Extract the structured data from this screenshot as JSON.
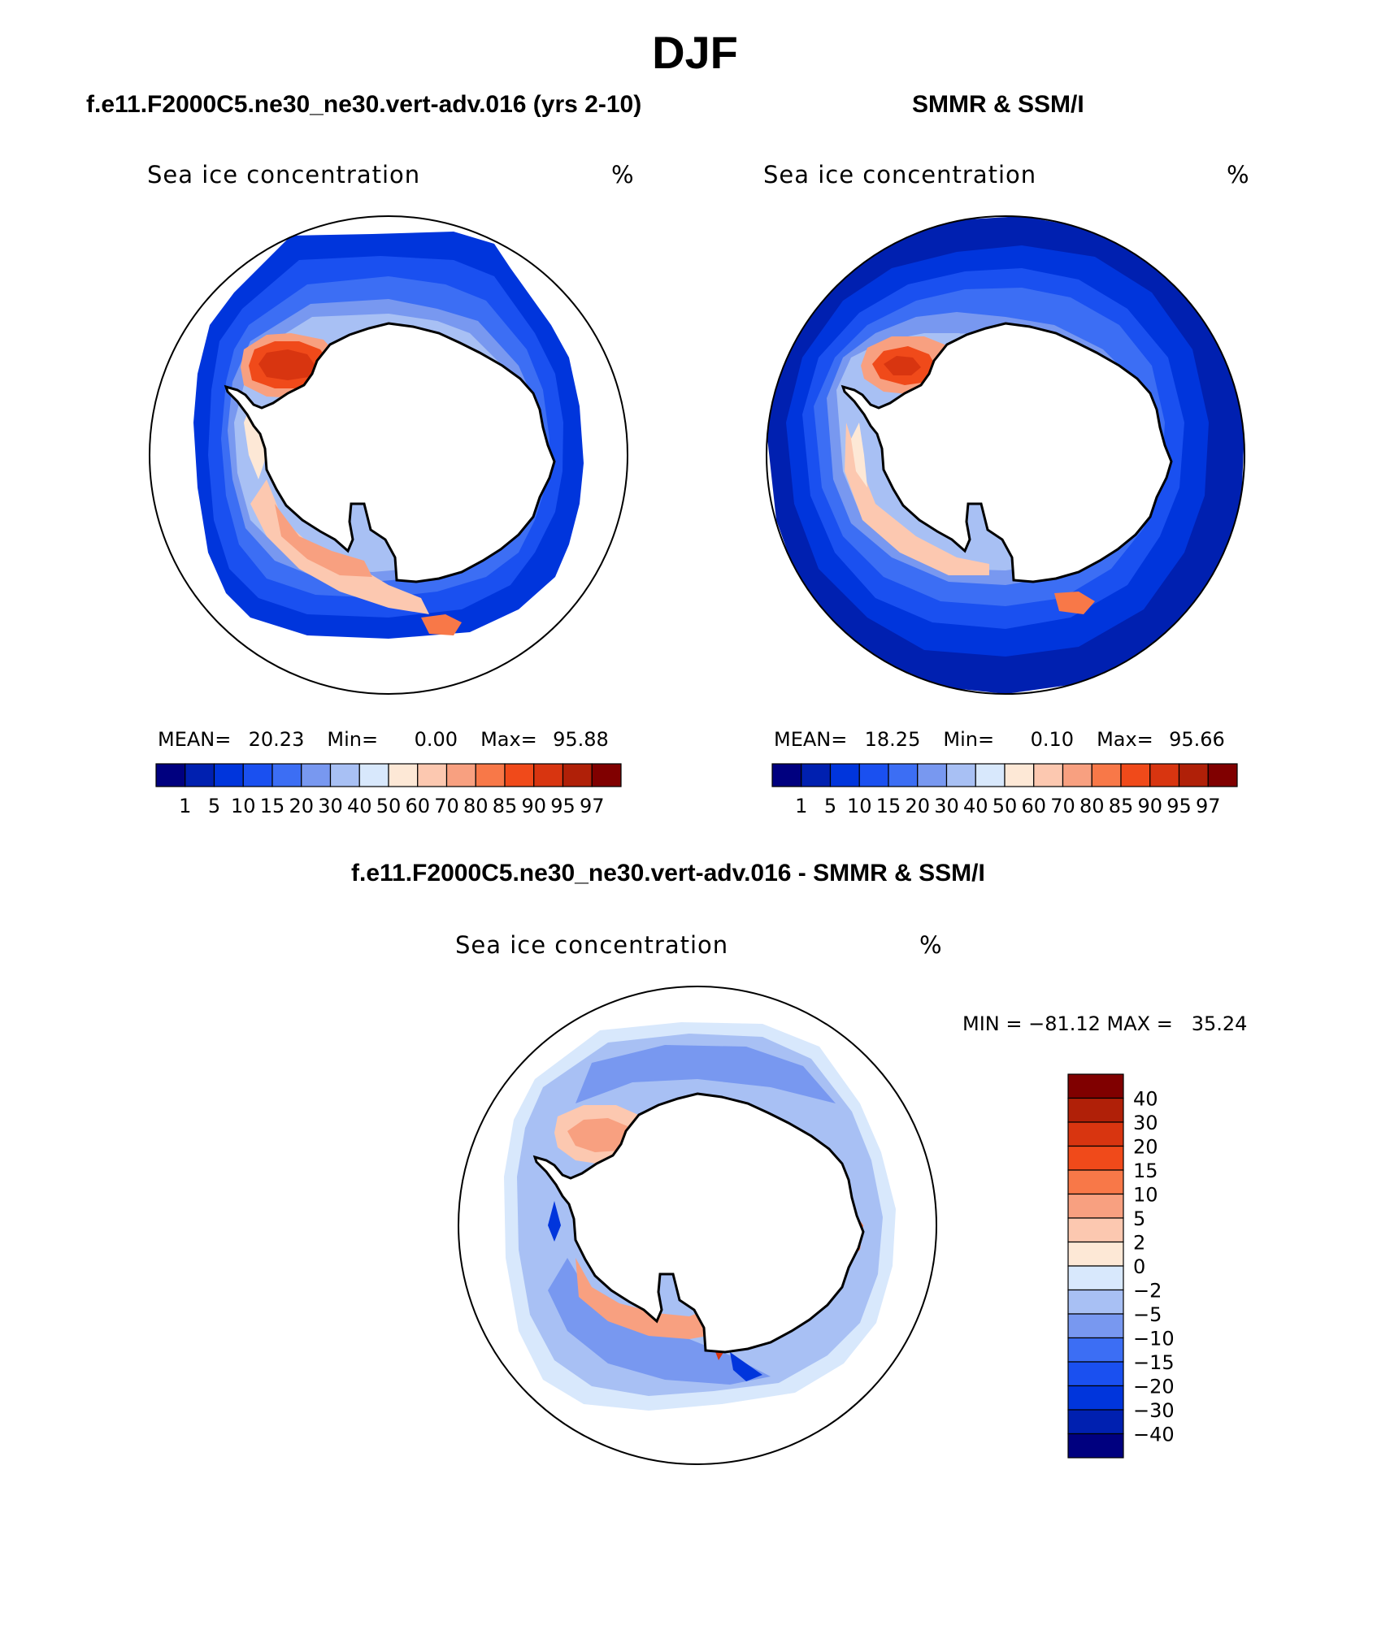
{
  "season_title": "DJF",
  "panels": [
    {
      "title": "f.e11.F2000C5.ne30_ne30.vert-adv.016 (yrs 2-10)",
      "variable": "Sea ice concentration",
      "units": "%",
      "stats": {
        "mean_label": "MEAN=",
        "mean": "20.23",
        "min_label": "Min=",
        "min": "0.00",
        "max_label": "Max=",
        "max": "95.88"
      }
    },
    {
      "title": "SMMR & SSM/I",
      "variable": "Sea ice concentration",
      "units": "%",
      "stats": {
        "mean_label": "MEAN=",
        "mean": "18.25",
        "min_label": "Min=",
        "min": "0.10",
        "max_label": "Max=",
        "max": "95.66"
      }
    },
    {
      "title": "f.e11.F2000C5.ne30_ne30.vert-adv.016 - SMMR & SSM/I",
      "variable": "Sea ice concentration",
      "units": "%",
      "stats_text": "MIN = −81.12 MAX =   35.24"
    }
  ],
  "concentration_colorbar": {
    "tick_labels": [
      "1",
      "5",
      "10",
      "15",
      "20",
      "30",
      "40",
      "50",
      "60",
      "70",
      "80",
      "85",
      "90",
      "95",
      "97"
    ],
    "colors": [
      "#00007f",
      "#0020b0",
      "#0035dc",
      "#1a50f0",
      "#3c6ef4",
      "#7898f0",
      "#a8c0f4",
      "#d8e8fc",
      "#fde8d6",
      "#fcc8b0",
      "#f8a080",
      "#f87848",
      "#f04a1a",
      "#d83510",
      "#b02008",
      "#800000"
    ]
  },
  "difference_colorbar": {
    "tick_labels": [
      "40",
      "30",
      "20",
      "15",
      "10",
      "5",
      "2",
      "0",
      "−2",
      "−5",
      "−10",
      "−15",
      "−20",
      "−30",
      "−40"
    ],
    "colors": [
      "#800000",
      "#b02008",
      "#d83510",
      "#f04a1a",
      "#f87848",
      "#f8a080",
      "#fcc8b0",
      "#fde8d6",
      "#d8e8fc",
      "#a8c0f4",
      "#7898f0",
      "#3c6ef4",
      "#1a50f0",
      "#0035dc",
      "#0020b0",
      "#00007f"
    ]
  }
}
